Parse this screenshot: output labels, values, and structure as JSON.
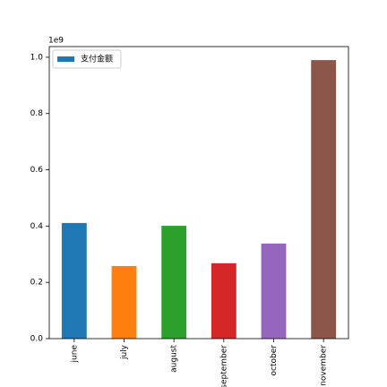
{
  "chart_data": {
    "type": "bar",
    "y_offset_label": "1e9",
    "categories": [
      "june",
      "july",
      "august",
      "september",
      "october",
      "november"
    ],
    "series": [
      {
        "name": "支付金额",
        "color": "#1f77b4",
        "values": [
          0.411,
          0.258,
          0.401,
          0.268,
          0.338,
          0.99
        ]
      }
    ],
    "bar_colors": [
      "#1f77b4",
      "#ff7f0e",
      "#2ca02c",
      "#d62728",
      "#9467bd",
      "#8c564b"
    ],
    "ylim": [
      0,
      1.038
    ],
    "yticks": [
      {
        "value": 0,
        "label": "0.0"
      },
      {
        "value": 0.2,
        "label": "0.2"
      },
      {
        "value": 0.4,
        "label": "0.4"
      },
      {
        "value": 0.6,
        "label": "0.6"
      },
      {
        "value": 0.8,
        "label": "0.8"
      },
      {
        "value": 1.0,
        "label": "1.0"
      }
    ],
    "legend": "upper left"
  }
}
